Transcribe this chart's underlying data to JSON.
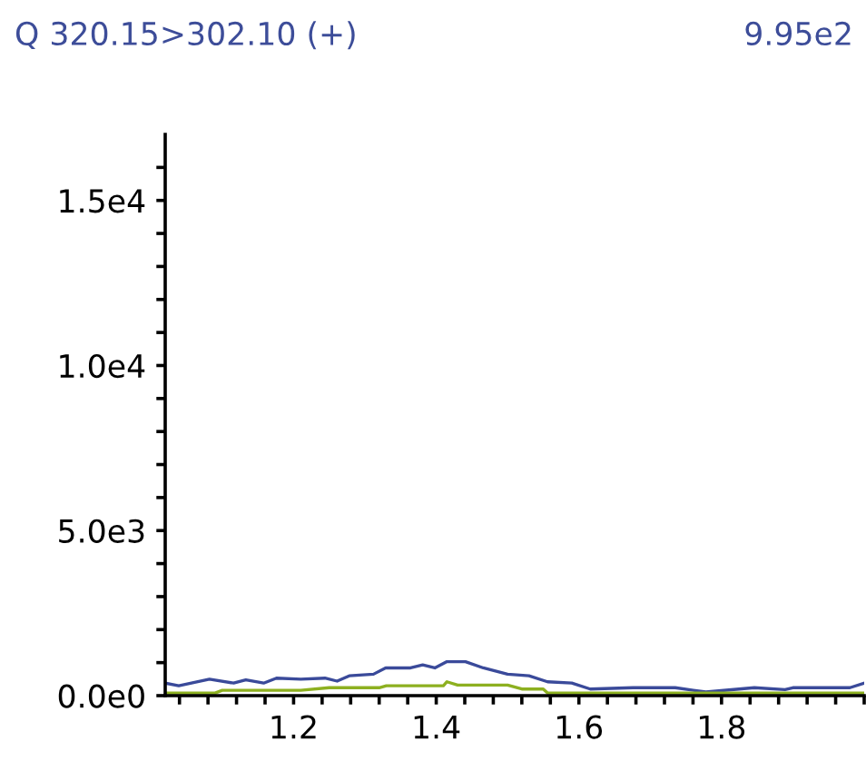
{
  "chart_data": {
    "type": "line",
    "title": "Q 320.15>302.10 (+)",
    "subtitle": "9.95e2",
    "series": [
      {
        "color": "#3a4a9a",
        "x": [
          1.02,
          1.039,
          1.082,
          1.116,
          1.133,
          1.158,
          1.176,
          1.21,
          1.244,
          1.261,
          1.278,
          1.312,
          1.329,
          1.364,
          1.381,
          1.398,
          1.415,
          1.441,
          1.466,
          1.5,
          1.53,
          1.556,
          1.59,
          1.616,
          1.676,
          1.735,
          1.778,
          1.846,
          1.889,
          1.9,
          1.98,
          2.0
        ],
        "values": [
          380,
          300,
          500,
          380,
          480,
          380,
          530,
          500,
          530,
          440,
          600,
          650,
          840,
          840,
          930,
          840,
          1030,
          1030,
          840,
          650,
          600,
          420,
          380,
          200,
          240,
          240,
          110,
          240,
          180,
          240,
          240,
          380
        ]
      },
      {
        "color": "#8db020",
        "x": [
          1.02,
          1.09,
          1.1,
          1.21,
          1.25,
          1.32,
          1.33,
          1.41,
          1.415,
          1.43,
          1.5,
          1.52,
          1.55,
          1.556,
          2.0
        ],
        "values": [
          80,
          80,
          160,
          160,
          240,
          240,
          300,
          300,
          420,
          320,
          320,
          200,
          200,
          80,
          80
        ]
      }
    ],
    "xlim": [
      1.02,
      2.0
    ],
    "xticks": [
      {
        "value": 1.04,
        "label": null
      },
      {
        "value": 1.08,
        "label": null
      },
      {
        "value": 1.12,
        "label": null
      },
      {
        "value": 1.16,
        "label": null
      },
      1.2,
      {
        "value": 1.24,
        "label": null
      },
      {
        "value": 1.28,
        "label": null
      },
      {
        "value": 1.32,
        "label": null
      },
      {
        "value": 1.36,
        "label": null
      },
      1.4,
      {
        "value": 1.44,
        "label": null
      },
      {
        "value": 1.48,
        "label": null
      },
      {
        "value": 1.52,
        "label": null
      },
      {
        "value": 1.56,
        "label": null
      },
      1.6,
      {
        "value": 1.64,
        "label": null
      },
      {
        "value": 1.68,
        "label": null
      },
      {
        "value": 1.72,
        "label": null
      },
      {
        "value": 1.76,
        "label": null
      },
      1.8,
      {
        "value": 1.84,
        "label": null
      },
      {
        "value": 1.88,
        "label": null
      },
      {
        "value": 1.92,
        "label": null
      },
      {
        "value": 1.96,
        "label": null
      },
      {
        "value": 2.0,
        "label": null
      }
    ],
    "ylim": [
      0,
      17000
    ],
    "yticks": [
      {
        "value": 0,
        "label": "0.0e0"
      },
      {
        "value": 1000,
        "label": null
      },
      {
        "value": 2000,
        "label": null
      },
      {
        "value": 3000,
        "label": null
      },
      {
        "value": 4000,
        "label": null
      },
      {
        "value": 5000,
        "label": "5.0e3"
      },
      {
        "value": 6000,
        "label": null
      },
      {
        "value": 7000,
        "label": null
      },
      {
        "value": 8000,
        "label": null
      },
      {
        "value": 9000,
        "label": null
      },
      {
        "value": 10000,
        "label": "1.0e4"
      },
      {
        "value": 11000,
        "label": null
      },
      {
        "value": 12000,
        "label": null
      },
      {
        "value": 13000,
        "label": null
      },
      {
        "value": 14000,
        "label": null
      },
      {
        "value": 15000,
        "label": "1.5e4"
      },
      {
        "value": 16000,
        "label": null
      }
    ],
    "grid": false,
    "legend": false,
    "marker": "none",
    "line_style": "solid"
  }
}
